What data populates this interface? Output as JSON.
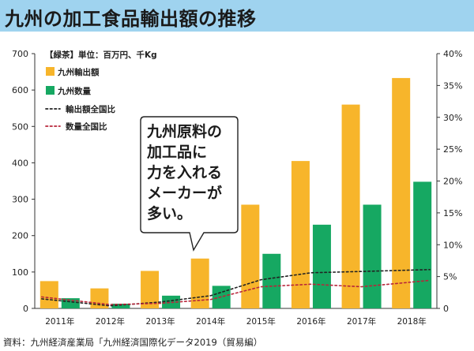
{
  "title": "九州の加工食品輸出額の推移",
  "source": "資料：九州経済産業局「九州経済国際化データ2019（貿易編）",
  "chart_data": {
    "type": "bar",
    "unit_note": "【緑茶】単位：百万円、千Kg",
    "categories": [
      "2011年",
      "2012年",
      "2013年",
      "2014年",
      "2015年",
      "2016年",
      "2017年",
      "2018年"
    ],
    "y_left": {
      "range": [
        0,
        700
      ],
      "ticks": [
        "0",
        "100",
        "200",
        "300",
        "400",
        "500",
        "600",
        "700"
      ]
    },
    "y_right": {
      "range": [
        0,
        40
      ],
      "ticks": [
        "0",
        "5%",
        "10%",
        "15%",
        "20%",
        "25%",
        "30%",
        "35%",
        "40%"
      ]
    },
    "series": [
      {
        "name": "九州輸出額",
        "kind": "bar",
        "axis": "left",
        "color": "#f7b52b",
        "values": [
          75,
          55,
          103,
          137,
          285,
          405,
          560,
          633
        ]
      },
      {
        "name": "九州数量",
        "kind": "bar",
        "axis": "left",
        "color": "#16a862",
        "values": [
          28,
          13,
          35,
          62,
          150,
          230,
          285,
          348
        ]
      },
      {
        "name": "輸出額全国比",
        "kind": "line",
        "axis": "right",
        "color": "#222222",
        "style": "dotted",
        "values": [
          1.5,
          0.4,
          1.0,
          2.0,
          4.5,
          5.6,
          5.8,
          6.1
        ]
      },
      {
        "name": "数量全国比",
        "kind": "line",
        "axis": "right",
        "color": "#b8263a",
        "style": "dotted",
        "values": [
          1.8,
          0.6,
          0.8,
          1.4,
          3.4,
          3.8,
          3.4,
          4.4
        ]
      }
    ],
    "legend_placement": "top-left",
    "grid": false,
    "callout": "九州原料の\n加工品に\n力を入れる\nメーカーが\n多い。"
  }
}
